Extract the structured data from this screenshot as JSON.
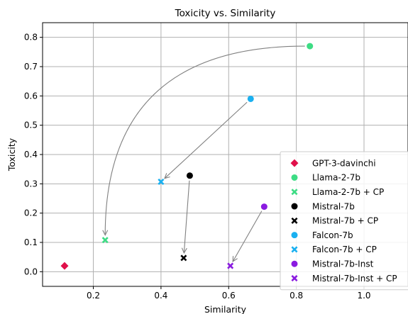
{
  "chart_data": {
    "type": "scatter",
    "title": "Toxicity vs. Similarity",
    "xlabel": "Similarity",
    "ylabel": "Toxicity",
    "xlim": [
      0.05,
      1.13
    ],
    "ylim": [
      -0.05,
      0.85
    ],
    "x_ticks": [
      0.2,
      0.4,
      0.6,
      0.8,
      1.0
    ],
    "x_tick_labels": [
      "0.2",
      "0.4",
      "0.6",
      "0.8",
      "1.0"
    ],
    "y_ticks": [
      0.0,
      0.1,
      0.2,
      0.3,
      0.4,
      0.5,
      0.6,
      0.7,
      0.8
    ],
    "y_tick_labels": [
      "0.0",
      "0.1",
      "0.2",
      "0.3",
      "0.4",
      "0.5",
      "0.6",
      "0.7",
      "0.8"
    ],
    "grid": true,
    "legend_position": "lower-right",
    "series": [
      {
        "name": "GPT-3-davinchi",
        "marker": "diamond",
        "color": "#e0104a",
        "x": 0.115,
        "y": 0.02
      },
      {
        "name": "Llama-2-7b",
        "marker": "circle",
        "color": "#3ddc84",
        "x": 0.84,
        "y": 0.77
      },
      {
        "name": "Llama-2-7b + CP",
        "marker": "x",
        "color": "#3ddc84",
        "x": 0.235,
        "y": 0.108
      },
      {
        "name": "Mistral-7b",
        "marker": "circle",
        "color": "#000000",
        "x": 0.485,
        "y": 0.328
      },
      {
        "name": "Mistral-7b + CP",
        "marker": "x",
        "color": "#000000",
        "x": 0.467,
        "y": 0.047
      },
      {
        "name": "Falcon-7b",
        "marker": "circle",
        "color": "#1ab0f0",
        "x": 0.665,
        "y": 0.59
      },
      {
        "name": "Falcon-7b + CP",
        "marker": "x",
        "color": "#1ab0f0",
        "x": 0.4,
        "y": 0.307
      },
      {
        "name": "Mistral-7b-Inst",
        "marker": "circle",
        "color": "#8a1be0",
        "x": 0.705,
        "y": 0.222
      },
      {
        "name": "Mistral-7b-Inst + CP",
        "marker": "x",
        "color": "#8a1be0",
        "x": 0.605,
        "y": 0.02
      }
    ],
    "arrows": [
      {
        "from": [
          0.84,
          0.77
        ],
        "to": [
          0.235,
          0.108
        ],
        "curved": true
      },
      {
        "from": [
          0.665,
          0.59
        ],
        "to": [
          0.4,
          0.307
        ],
        "curved": false
      },
      {
        "from": [
          0.485,
          0.328
        ],
        "to": [
          0.467,
          0.047
        ],
        "curved": false
      },
      {
        "from": [
          0.705,
          0.222
        ],
        "to": [
          0.605,
          0.02
        ],
        "curved": false
      }
    ],
    "arrow_color": "#808080"
  }
}
